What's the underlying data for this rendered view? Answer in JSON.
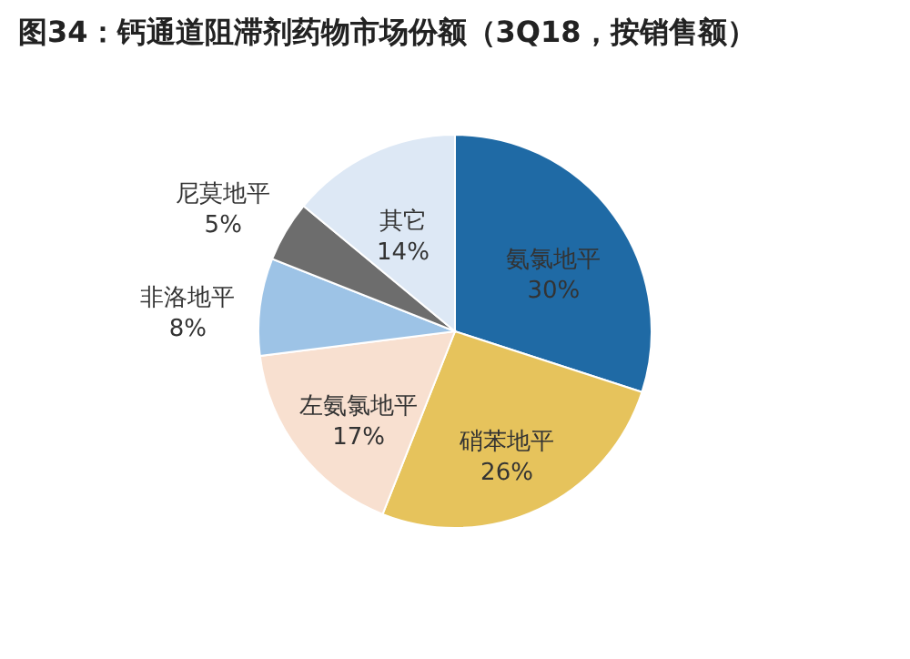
{
  "chart_data": {
    "type": "pie",
    "title": "图34：钙通道阻滞剂药物市场份额（3Q18，按销售额）",
    "categories": [
      "氨氯地平",
      "硝苯地平",
      "左氨氯地平",
      "非洛地平",
      "尼莫地平",
      "其它"
    ],
    "values": [
      30,
      26,
      17,
      8,
      5,
      14
    ],
    "value_labels": [
      "30%",
      "26%",
      "17%",
      "8%",
      "5%",
      "14%"
    ],
    "colors": [
      "#1f6aa5",
      "#e6c35c",
      "#f8e0d0",
      "#9dc3e6",
      "#6d6d6d",
      "#dde8f5"
    ],
    "legend": false
  }
}
